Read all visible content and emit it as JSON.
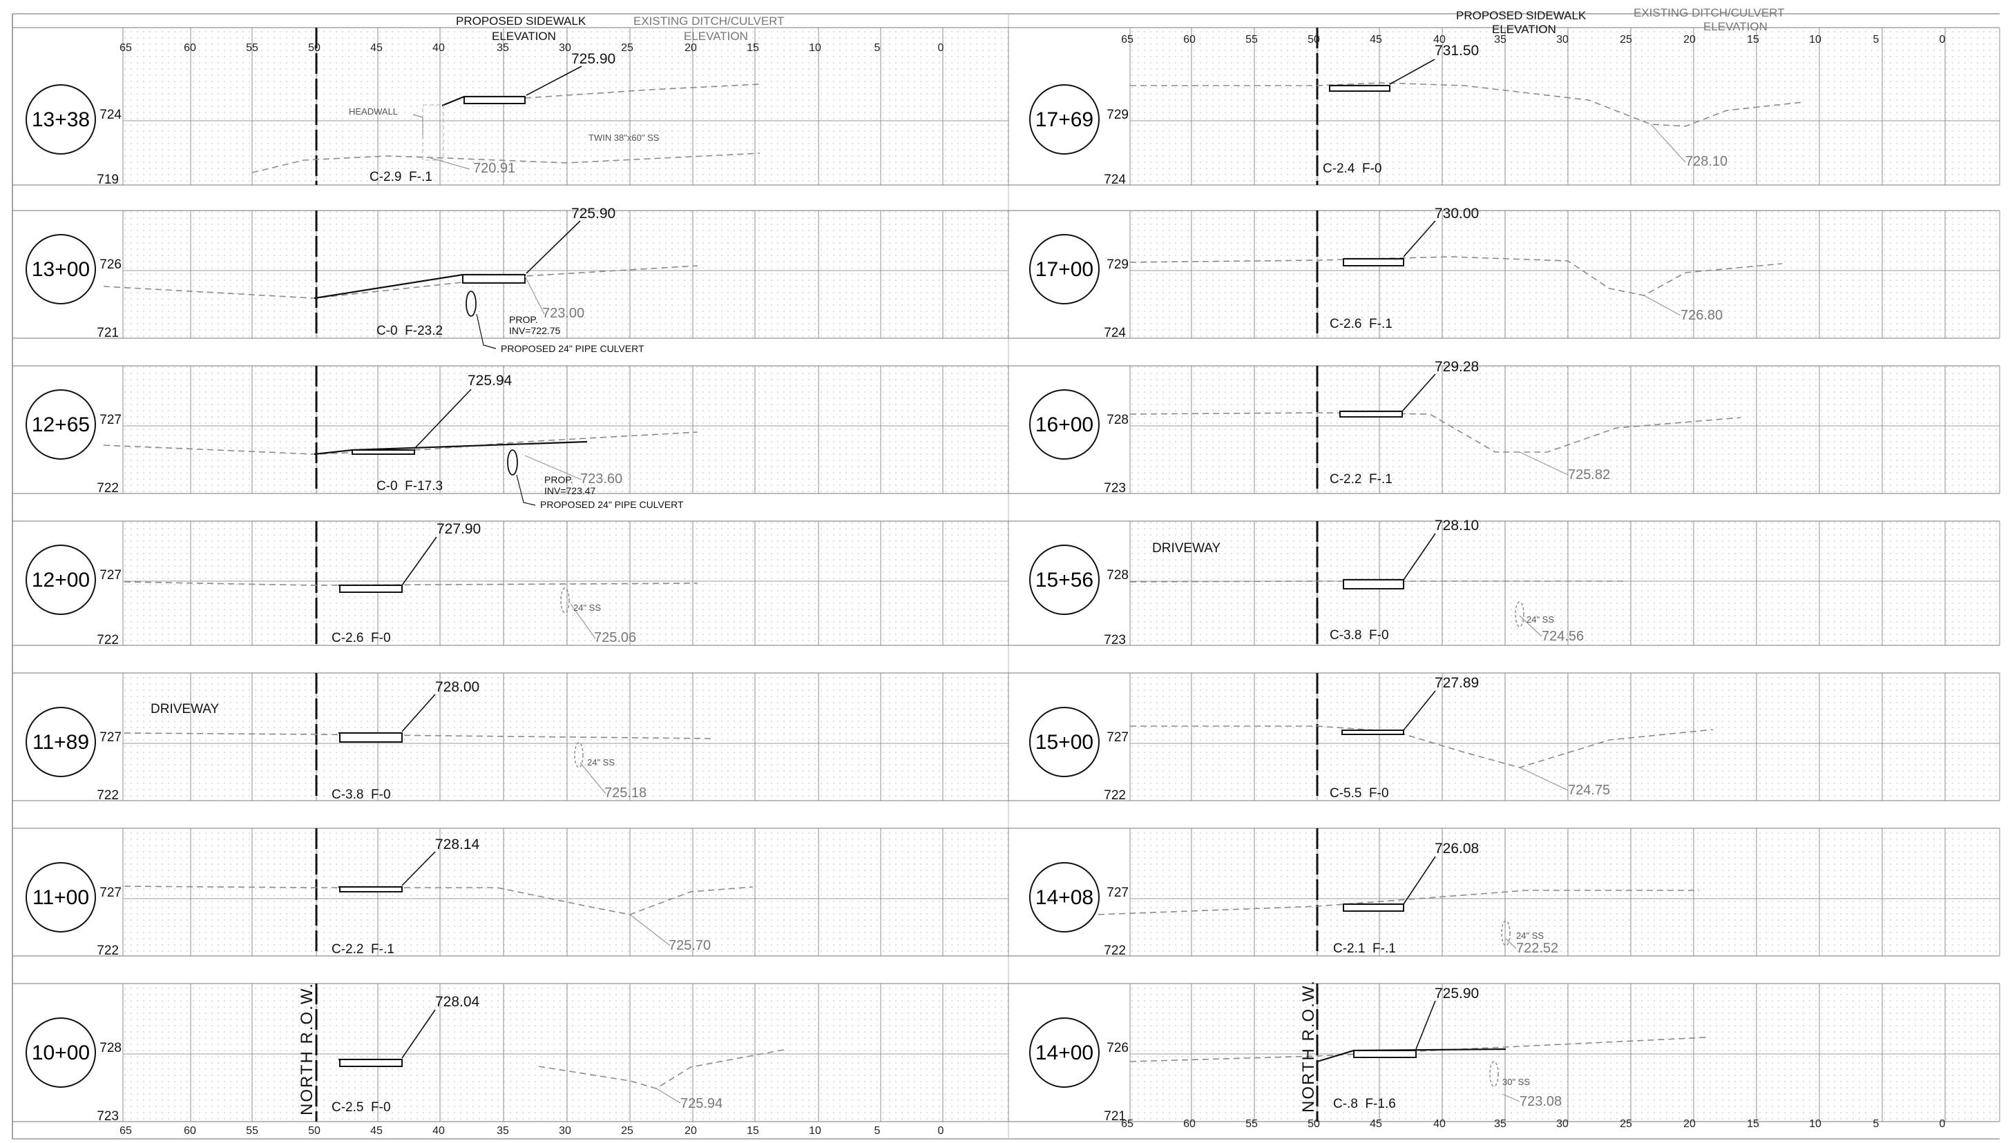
{
  "header": {
    "proposed_sidewalk_line1": "PROPOSED SIDEWALK",
    "proposed_sidewalk_line2": "ELEVATION",
    "existing_ditch_line1": "EXISTING DITCH/CULVERT",
    "existing_ditch_line2": "ELEVATION"
  },
  "offset_scale": [
    "65",
    "60",
    "55",
    "50",
    "45",
    "40",
    "35",
    "30",
    "25",
    "20",
    "15",
    "10",
    "5",
    "0"
  ],
  "right_of_way_label": "NORTH R.O.W.",
  "colors": {
    "ink": "#111111",
    "existing": "#8a8a8a",
    "grid": "#9a9a9a",
    "dots": "#c8c8c8"
  },
  "left_column": [
    {
      "station": "13+38",
      "elev_upper": "724",
      "elev_lower": "719",
      "proposed_grade": "725.90",
      "existing_grade": "720.91",
      "cut_fill": "C-2.9  F-.1",
      "notes": [
        "HEADWALL",
        "TWIN 38\"x60\" SS"
      ]
    },
    {
      "station": "13+00",
      "elev_upper": "726",
      "elev_lower": "721",
      "proposed_grade": "725.90",
      "existing_grade": "723.00",
      "cut_fill": "C-0  F-23.2",
      "notes": [
        "PROP.",
        "INV=722.75",
        "PROPOSED 24\" PIPE CULVERT"
      ]
    },
    {
      "station": "12+65",
      "elev_upper": "727",
      "elev_lower": "722",
      "proposed_grade": "725.94",
      "existing_grade": "723.60",
      "cut_fill": "C-0  F-17.3",
      "notes": [
        "PROP.",
        "INV=723.47",
        "PROPOSED 24\" PIPE CULVERT"
      ]
    },
    {
      "station": "12+00",
      "elev_upper": "727",
      "elev_lower": "722",
      "proposed_grade": "727.90",
      "existing_grade": "725.06",
      "cut_fill": "C-2.6  F-0",
      "notes": [
        "24\" SS"
      ]
    },
    {
      "station": "11+89",
      "elev_upper": "727",
      "elev_lower": "722",
      "proposed_grade": "728.00",
      "existing_grade": "725.18",
      "cut_fill": "C-3.8  F-0",
      "notes": [
        "DRIVEWAY",
        "24\" SS"
      ]
    },
    {
      "station": "11+00",
      "elev_upper": "727",
      "elev_lower": "722",
      "proposed_grade": "728.14",
      "existing_grade": "725.70",
      "cut_fill": "C-2.2  F-.1",
      "notes": []
    },
    {
      "station": "10+00",
      "elev_upper": "728",
      "elev_lower": "723",
      "proposed_grade": "728.04",
      "existing_grade": "725.94",
      "cut_fill": "C-2.5  F-0",
      "notes": []
    }
  ],
  "right_column": [
    {
      "station": "17+69",
      "elev_upper": "729",
      "elev_lower": "724",
      "proposed_grade": "731.50",
      "existing_grade": "728.10",
      "cut_fill": "C-2.4  F-0",
      "notes": []
    },
    {
      "station": "17+00",
      "elev_upper": "729",
      "elev_lower": "724",
      "proposed_grade": "730.00",
      "existing_grade": "726.80",
      "cut_fill": "C-2.6  F-.1",
      "notes": []
    },
    {
      "station": "16+00",
      "elev_upper": "728",
      "elev_lower": "723",
      "proposed_grade": "729.28",
      "existing_grade": "725.82",
      "cut_fill": "C-2.2  F-.1",
      "notes": []
    },
    {
      "station": "15+56",
      "elev_upper": "728",
      "elev_lower": "723",
      "proposed_grade": "728.10",
      "existing_grade": "724.56",
      "cut_fill": "C-3.8  F-0",
      "notes": [
        "DRIVEWAY",
        "24\" SS"
      ]
    },
    {
      "station": "15+00",
      "elev_upper": "727",
      "elev_lower": "722",
      "proposed_grade": "727.89",
      "existing_grade": "724.75",
      "cut_fill": "C-5.5  F-0",
      "notes": []
    },
    {
      "station": "14+08",
      "elev_upper": "727",
      "elev_lower": "722",
      "proposed_grade": "726.08",
      "existing_grade": "722.52",
      "cut_fill": "C-2.1  F-.1",
      "notes": [
        "24\" SS"
      ]
    },
    {
      "station": "14+00",
      "elev_upper": "726",
      "elev_lower": "721",
      "proposed_grade": "725.90",
      "existing_grade": "723.08",
      "cut_fill": "C-.8  F-1.6",
      "notes": [
        "30\" SS"
      ]
    }
  ]
}
